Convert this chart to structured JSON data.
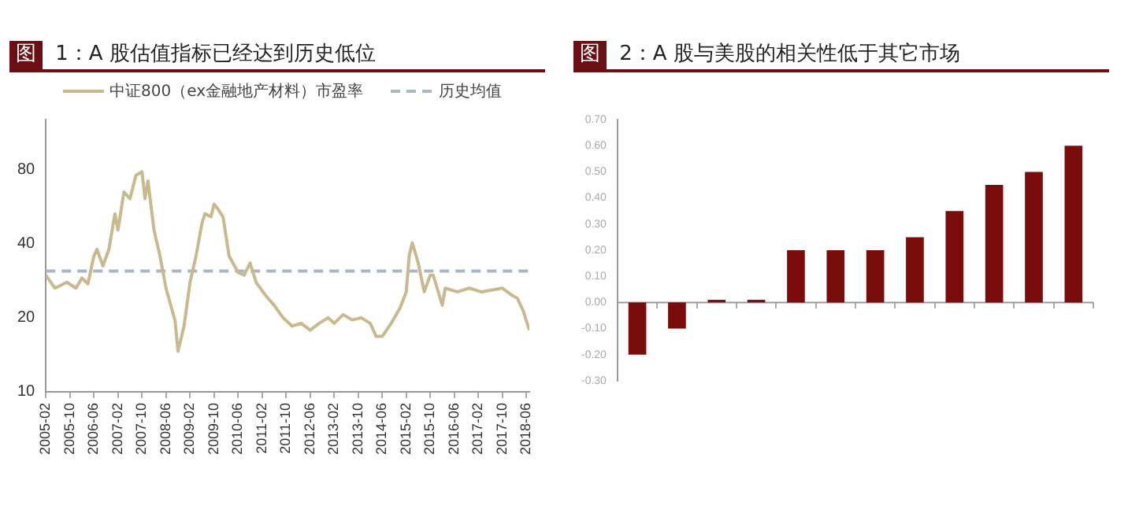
{
  "chart_data": [
    {
      "type": "line",
      "title": "图 1：A 股估值指标已经达到历史低位",
      "legend": "top",
      "log": "y",
      "marker": "none",
      "line_style": "solid",
      "series": [
        {
          "name": "中证800（ex金融地产材料）市盈率",
          "color": "#c8b98e",
          "x": [
            "2005-02",
            "2005-05",
            "2005-09",
            "2005-12",
            "2006-02",
            "2006-04",
            "2006-06",
            "2006-07",
            "2006-09",
            "2006-11",
            "2007-01",
            "2007-02",
            "2007-04",
            "2007-06",
            "2007-08",
            "2007-10",
            "2007-11",
            "2007-12",
            "2008-02",
            "2008-04",
            "2008-06",
            "2008-09",
            "2008-10",
            "2008-12",
            "2009-02",
            "2009-04",
            "2009-06",
            "2009-07",
            "2009-09",
            "2009-10",
            "2009-11",
            "2010-01",
            "2010-03",
            "2010-06",
            "2010-08",
            "2010-10",
            "2010-12",
            "2011-03",
            "2011-06",
            "2011-09",
            "2011-12",
            "2012-03",
            "2012-06",
            "2012-09",
            "2012-12",
            "2013-02",
            "2013-05",
            "2013-08",
            "2013-11",
            "2014-02",
            "2014-04",
            "2014-06",
            "2014-09",
            "2014-12",
            "2015-02",
            "2015-03",
            "2015-04",
            "2015-06",
            "2015-08",
            "2015-10",
            "2015-11",
            "2016-02",
            "2016-03",
            "2016-07",
            "2016-11",
            "2017-03",
            "2017-07",
            "2017-10",
            "2018-01",
            "2018-03",
            "2018-05",
            "2018-07"
          ],
          "values": [
            29.8,
            26.4,
            27.9,
            26.4,
            29,
            27.5,
            35.7,
            38,
            32.5,
            38,
            53,
            45.5,
            65,
            61,
            76,
            78.5,
            61,
            72,
            45.5,
            35.7,
            26.4,
            19.5,
            14.6,
            18.5,
            27.9,
            35.7,
            48.6,
            53,
            51.5,
            58,
            56,
            51.5,
            35.7,
            30.6,
            29.8,
            33.4,
            27.9,
            24.8,
            22.5,
            20,
            18.5,
            19,
            17.8,
            19,
            20,
            19,
            20.6,
            19.6,
            20,
            19,
            16.8,
            16.8,
            19,
            22,
            25.5,
            35.7,
            40.4,
            33.4,
            25.5,
            29.8,
            29.8,
            22.5,
            26.4,
            25.5,
            26.4,
            25.5,
            26,
            26.4,
            24.8,
            24,
            21.3,
            17.8
          ]
        }
      ],
      "ref_lines": [
        {
          "axis": "y",
          "value": 31,
          "label": "历史均值",
          "color": "#a9b8c6",
          "line_style": "dashed"
        }
      ],
      "xlim": [
        "2005-02",
        "2018-07"
      ],
      "xticks": [
        "2005-02",
        "2005-10",
        "2006-06",
        "2007-02",
        "2007-10",
        "2008-06",
        "2009-02",
        "2009-10",
        "2010-06",
        "2011-02",
        "2011-10",
        "2012-06",
        "2013-02",
        "2013-10",
        "2014-06",
        "2015-02",
        "2015-10",
        "2016-06",
        "2017-02",
        "2017-10",
        "2018-06"
      ],
      "ylim": [
        10,
        128
      ],
      "yticks": [
        10,
        20,
        40,
        80
      ],
      "grid": false
    },
    {
      "type": "bar",
      "title": "图 2：A 股与美股的相关性低于其它市场",
      "categories": [
        null,
        null,
        null,
        null,
        null,
        null,
        null,
        null,
        null,
        null,
        null,
        null
      ],
      "values": [
        -0.2,
        -0.1,
        0.01,
        0.01,
        0.2,
        0.2,
        0.2,
        0.25,
        0.35,
        0.45,
        0.5,
        0.6
      ],
      "color": "#7b0c0c",
      "ref_lines": [
        {
          "axis": "y",
          "value": 0,
          "color": "#999999",
          "line_style": "solid"
        }
      ],
      "ylim": [
        -0.3,
        0.7
      ],
      "yticks": [
        {
          "value": -0.3,
          "label": "-0.30"
        },
        {
          "value": -0.2,
          "label": "-0.20"
        },
        {
          "value": -0.1,
          "label": "-0.10"
        },
        {
          "value": 0,
          "label": "0.00"
        },
        {
          "value": 0.1,
          "label": "0.10"
        },
        {
          "value": 0.2,
          "label": "0.20"
        },
        {
          "value": 0.3,
          "label": "0.30"
        },
        {
          "value": 0.4,
          "label": "0.40"
        },
        {
          "value": 0.5,
          "label": "0.50"
        },
        {
          "value": 0.6,
          "label": "0.60"
        },
        {
          "value": 0.7,
          "label": "0.70"
        }
      ],
      "grid": false
    }
  ]
}
